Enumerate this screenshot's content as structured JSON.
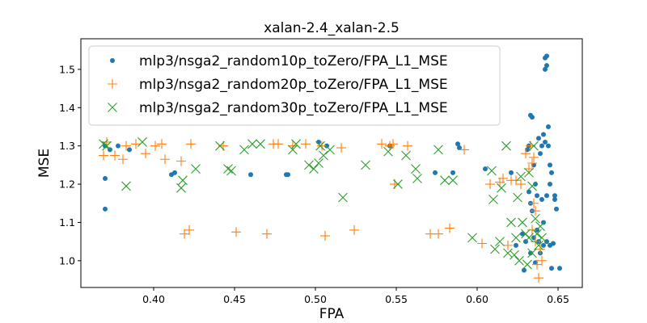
{
  "chart_data": {
    "type": "scatter",
    "title": "xalan-2.4_xalan-2.5",
    "xlabel": "FPA",
    "ylabel": "MSE",
    "xlim": [
      0.355,
      0.665
    ],
    "ylim": [
      0.93,
      1.58
    ],
    "xticks": [
      "0.40",
      "0.45",
      "0.50",
      "0.55",
      "0.60",
      "0.65"
    ],
    "yticks": [
      "1.0",
      "1.1",
      "1.2",
      "1.3",
      "1.4",
      "1.5"
    ],
    "legend_position": "top-left",
    "grid": false,
    "series": [
      {
        "name": "mlp3/nsga2_random10p_toZero/FPA_L1_MSE",
        "marker": "dot",
        "color": "#1f77b4",
        "points": [
          [
            0.37,
            1.3
          ],
          [
            0.37,
            1.215
          ],
          [
            0.37,
            1.135
          ],
          [
            0.373,
            1.29
          ],
          [
            0.378,
            1.3
          ],
          [
            0.385,
            1.29
          ],
          [
            0.411,
            1.225
          ],
          [
            0.413,
            1.23
          ],
          [
            0.46,
            1.225
          ],
          [
            0.482,
            1.225
          ],
          [
            0.483,
            1.225
          ],
          [
            0.502,
            1.31
          ],
          [
            0.507,
            1.3
          ],
          [
            0.546,
            1.3
          ],
          [
            0.574,
            1.23
          ],
          [
            0.585,
            1.23
          ],
          [
            0.588,
            1.305
          ],
          [
            0.589,
            1.295
          ],
          [
            0.605,
            1.24
          ],
          [
            0.621,
            1.23
          ],
          [
            0.624,
            1.04
          ],
          [
            0.628,
            1.07
          ],
          [
            0.63,
            1.05
          ],
          [
            0.631,
            1.29
          ],
          [
            0.632,
            1.3
          ],
          [
            0.632,
            1.18
          ],
          [
            0.633,
            1.38
          ],
          [
            0.633,
            1.15
          ],
          [
            0.634,
            1.375
          ],
          [
            0.634,
            1.13
          ],
          [
            0.635,
            1.25
          ],
          [
            0.635,
            1.06
          ],
          [
            0.636,
            1.2
          ],
          [
            0.637,
            1.17
          ],
          [
            0.637,
            1.08
          ],
          [
            0.638,
            1.32
          ],
          [
            0.638,
            1.05
          ],
          [
            0.639,
            1.28
          ],
          [
            0.639,
            1.02
          ],
          [
            0.64,
            1.3
          ],
          [
            0.64,
            1.16
          ],
          [
            0.641,
            1.33
          ],
          [
            0.641,
            1.1
          ],
          [
            0.642,
            1.53
          ],
          [
            0.642,
            1.5
          ],
          [
            0.642,
            1.31
          ],
          [
            0.643,
            1.535
          ],
          [
            0.643,
            1.51
          ],
          [
            0.643,
            1.17
          ],
          [
            0.643,
            1.05
          ],
          [
            0.644,
            1.35
          ],
          [
            0.644,
            1.3
          ],
          [
            0.645,
            1.25
          ],
          [
            0.645,
            1.2
          ],
          [
            0.645,
            1.04
          ],
          [
            0.646,
            1.23
          ],
          [
            0.646,
            0.98
          ],
          [
            0.647,
            1.045
          ],
          [
            0.648,
            1.17
          ],
          [
            0.648,
            1.16
          ],
          [
            0.649,
            1.135
          ],
          [
            0.651,
            0.98
          ],
          [
            0.636,
            0.995
          ],
          [
            0.633,
            1.02
          ],
          [
            0.629,
            0.975
          ],
          [
            0.641,
            1.04
          ]
        ]
      },
      {
        "name": "mlp3/nsga2_random20p_toZero/FPA_L1_MSE",
        "marker": "plus",
        "color": "#ff7f0e",
        "points": [
          [
            0.369,
            1.275
          ],
          [
            0.371,
            1.31
          ],
          [
            0.376,
            1.275
          ],
          [
            0.381,
            1.265
          ],
          [
            0.383,
            1.3
          ],
          [
            0.389,
            1.305
          ],
          [
            0.395,
            1.28
          ],
          [
            0.401,
            1.3
          ],
          [
            0.405,
            1.305
          ],
          [
            0.407,
            1.265
          ],
          [
            0.417,
            1.26
          ],
          [
            0.419,
            1.07
          ],
          [
            0.422,
            1.08
          ],
          [
            0.423,
            1.305
          ],
          [
            0.443,
            1.3
          ],
          [
            0.451,
            1.075
          ],
          [
            0.47,
            1.07
          ],
          [
            0.474,
            1.305
          ],
          [
            0.477,
            1.305
          ],
          [
            0.486,
            1.3
          ],
          [
            0.494,
            1.305
          ],
          [
            0.504,
            1.3
          ],
          [
            0.506,
            1.065
          ],
          [
            0.516,
            1.295
          ],
          [
            0.524,
            1.08
          ],
          [
            0.541,
            1.305
          ],
          [
            0.546,
            1.3
          ],
          [
            0.548,
            1.305
          ],
          [
            0.549,
            1.2
          ],
          [
            0.557,
            1.3
          ],
          [
            0.571,
            1.07
          ],
          [
            0.576,
            1.07
          ],
          [
            0.583,
            1.085
          ],
          [
            0.592,
            1.29
          ],
          [
            0.603,
            1.045
          ],
          [
            0.608,
            1.2
          ],
          [
            0.614,
            1.205
          ],
          [
            0.616,
            1.215
          ],
          [
            0.619,
            1.04
          ],
          [
            0.621,
            1.21
          ],
          [
            0.624,
            1.21
          ],
          [
            0.627,
            1.2
          ],
          [
            0.63,
            1.28
          ],
          [
            0.632,
            1.24
          ],
          [
            0.633,
            1.3
          ],
          [
            0.634,
            1.255
          ],
          [
            0.634,
            1.08
          ],
          [
            0.635,
            1.27
          ],
          [
            0.635,
            1.15
          ],
          [
            0.636,
            1.13
          ],
          [
            0.636,
            1.05
          ],
          [
            0.637,
            0.99
          ],
          [
            0.638,
            0.955
          ],
          [
            0.639,
            1.03
          ],
          [
            0.64,
            1.0
          ]
        ]
      },
      {
        "name": "mlp3/nsga2_random30p_toZero/FPA_L1_MSE",
        "marker": "x",
        "color": "#2ca02c",
        "points": [
          [
            0.369,
            1.305
          ],
          [
            0.371,
            1.3
          ],
          [
            0.383,
            1.195
          ],
          [
            0.393,
            1.31
          ],
          [
            0.417,
            1.19
          ],
          [
            0.418,
            1.21
          ],
          [
            0.426,
            1.24
          ],
          [
            0.441,
            1.3
          ],
          [
            0.446,
            1.24
          ],
          [
            0.448,
            1.235
          ],
          [
            0.456,
            1.29
          ],
          [
            0.461,
            1.305
          ],
          [
            0.466,
            1.305
          ],
          [
            0.486,
            1.29
          ],
          [
            0.488,
            1.305
          ],
          [
            0.496,
            1.25
          ],
          [
            0.499,
            1.24
          ],
          [
            0.502,
            1.255
          ],
          [
            0.503,
            1.3
          ],
          [
            0.505,
            1.275
          ],
          [
            0.509,
            1.29
          ],
          [
            0.517,
            1.165
          ],
          [
            0.531,
            1.25
          ],
          [
            0.545,
            1.285
          ],
          [
            0.551,
            1.2
          ],
          [
            0.556,
            1.275
          ],
          [
            0.562,
            1.24
          ],
          [
            0.563,
            1.215
          ],
          [
            0.576,
            1.29
          ],
          [
            0.58,
            1.21
          ],
          [
            0.585,
            1.21
          ],
          [
            0.597,
            1.06
          ],
          [
            0.609,
            1.235
          ],
          [
            0.61,
            1.16
          ],
          [
            0.611,
            1.03
          ],
          [
            0.614,
            1.05
          ],
          [
            0.615,
            1.19
          ],
          [
            0.618,
            1.3
          ],
          [
            0.619,
            1.02
          ],
          [
            0.621,
            1.1
          ],
          [
            0.623,
            1.015
          ],
          [
            0.624,
            1.06
          ],
          [
            0.625,
            1.165
          ],
          [
            0.626,
            1.0
          ],
          [
            0.627,
            1.22
          ],
          [
            0.628,
            1.1
          ],
          [
            0.63,
            1.07
          ],
          [
            0.631,
            0.99
          ],
          [
            0.632,
            1.23
          ],
          [
            0.632,
            1.06
          ],
          [
            0.634,
            1.195
          ],
          [
            0.634,
            1.02
          ],
          [
            0.635,
            1.3
          ],
          [
            0.636,
            1.11
          ],
          [
            0.637,
            1.07
          ],
          [
            0.638,
            1.04
          ],
          [
            0.639,
            1.09
          ],
          [
            0.64,
            1.06
          ]
        ]
      }
    ]
  }
}
